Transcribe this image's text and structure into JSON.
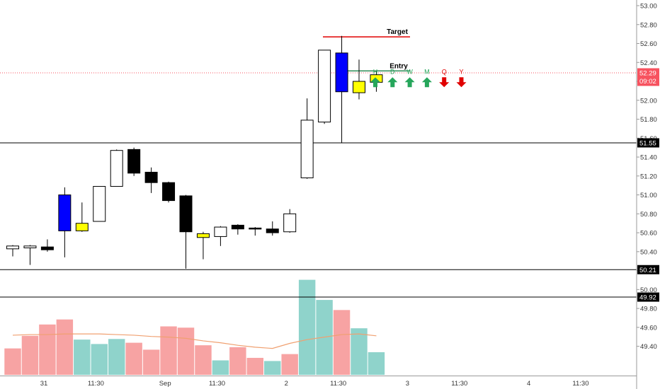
{
  "chart_data": {
    "type": "candlestick",
    "colors": {
      "bull_body": "#ffffff",
      "bear_body": "#000000",
      "candle_outline": "#000000",
      "highlight_blue": "#0000ff",
      "highlight_yellow": "#ffff00",
      "volume_up": "#8fd3cb",
      "volume_down": "#f7a3a3",
      "volume_ma": "#f0a070",
      "target_line": "#e00000",
      "entry_line": "#2e8b57",
      "last_price_tag": "#f7525f",
      "arrow_up": "#26a65b",
      "arrow_down": "#e00000",
      "level_line": "#000000"
    },
    "y_axis": {
      "min": 49.3,
      "max": 53.0,
      "ticks": [
        53.0,
        52.8,
        52.6,
        52.4,
        52.2,
        52.0,
        51.8,
        51.6,
        51.4,
        51.2,
        51.0,
        50.8,
        50.6,
        50.4,
        50.2,
        50.0,
        49.8,
        49.6,
        49.4
      ]
    },
    "x_axis": {
      "ticks": [
        {
          "label": "31",
          "slot": 2
        },
        {
          "label": "11:30",
          "slot": 5
        },
        {
          "label": "Sep",
          "slot": 9
        },
        {
          "label": "11:30",
          "slot": 12
        },
        {
          "label": "2",
          "slot": 16
        },
        {
          "label": "11:30",
          "slot": 19
        },
        {
          "label": "3",
          "slot": 23
        },
        {
          "label": "11:30",
          "slot": 26
        },
        {
          "label": "4",
          "slot": 30
        },
        {
          "label": "11:30",
          "slot": 33
        }
      ]
    },
    "candles": [
      {
        "o": 50.43,
        "h": 50.47,
        "l": 50.35,
        "c": 50.46,
        "style": "bull"
      },
      {
        "o": 50.44,
        "h": 50.47,
        "l": 50.26,
        "c": 50.46,
        "style": "bull"
      },
      {
        "o": 50.45,
        "h": 50.53,
        "l": 50.4,
        "c": 50.42,
        "style": "bear"
      },
      {
        "o": 50.62,
        "h": 51.08,
        "l": 50.34,
        "c": 51.0,
        "style": "blue"
      },
      {
        "o": 50.62,
        "h": 50.92,
        "l": 50.61,
        "c": 50.7,
        "style": "yellow"
      },
      {
        "o": 50.72,
        "h": 51.09,
        "l": 50.72,
        "c": 51.09,
        "style": "bull"
      },
      {
        "o": 51.09,
        "h": 51.48,
        "l": 51.09,
        "c": 51.47,
        "style": "bull"
      },
      {
        "o": 51.48,
        "h": 51.5,
        "l": 51.2,
        "c": 51.23,
        "style": "bear"
      },
      {
        "o": 51.24,
        "h": 51.29,
        "l": 51.02,
        "c": 51.13,
        "style": "bear"
      },
      {
        "o": 51.13,
        "h": 51.14,
        "l": 50.92,
        "c": 50.94,
        "style": "bear"
      },
      {
        "o": 50.99,
        "h": 51.0,
        "l": 50.22,
        "c": 50.61,
        "style": "bear"
      },
      {
        "o": 50.55,
        "h": 50.61,
        "l": 50.32,
        "c": 50.59,
        "style": "yellow"
      },
      {
        "o": 50.56,
        "h": 50.67,
        "l": 50.46,
        "c": 50.66,
        "style": "bull"
      },
      {
        "o": 50.64,
        "h": 50.69,
        "l": 50.58,
        "c": 50.68,
        "style": "bear"
      },
      {
        "o": 50.65,
        "h": 50.66,
        "l": 50.57,
        "c": 50.64,
        "style": "bear"
      },
      {
        "o": 50.64,
        "h": 50.72,
        "l": 50.57,
        "c": 50.6,
        "style": "bear"
      },
      {
        "o": 50.61,
        "h": 50.85,
        "l": 50.6,
        "c": 50.8,
        "style": "bull"
      },
      {
        "o": 51.18,
        "h": 52.02,
        "l": 51.17,
        "c": 51.79,
        "style": "bull"
      },
      {
        "o": 51.77,
        "h": 52.53,
        "l": 51.75,
        "c": 52.53,
        "style": "bull"
      },
      {
        "o": 52.5,
        "h": 52.68,
        "l": 51.55,
        "c": 52.09,
        "style": "blue"
      },
      {
        "o": 52.08,
        "h": 52.43,
        "l": 52.01,
        "c": 52.2,
        "style": "yellow"
      },
      {
        "o": 52.19,
        "h": 52.31,
        "l": 52.09,
        "c": 52.27,
        "style": "yellow"
      }
    ],
    "volumes": [
      {
        "v": 0.42,
        "dir": "down"
      },
      {
        "v": 0.62,
        "dir": "down"
      },
      {
        "v": 0.8,
        "dir": "down"
      },
      {
        "v": 0.88,
        "dir": "down"
      },
      {
        "v": 0.56,
        "dir": "up"
      },
      {
        "v": 0.49,
        "dir": "up"
      },
      {
        "v": 0.57,
        "dir": "up"
      },
      {
        "v": 0.51,
        "dir": "down"
      },
      {
        "v": 0.4,
        "dir": "down"
      },
      {
        "v": 0.77,
        "dir": "down"
      },
      {
        "v": 0.75,
        "dir": "down"
      },
      {
        "v": 0.47,
        "dir": "down"
      },
      {
        "v": 0.23,
        "dir": "up"
      },
      {
        "v": 0.44,
        "dir": "down"
      },
      {
        "v": 0.27,
        "dir": "down"
      },
      {
        "v": 0.22,
        "dir": "up"
      },
      {
        "v": 0.33,
        "dir": "down"
      },
      {
        "v": 1.51,
        "dir": "up"
      },
      {
        "v": 1.19,
        "dir": "up"
      },
      {
        "v": 1.03,
        "dir": "down"
      },
      {
        "v": 0.74,
        "dir": "up"
      },
      {
        "v": 0.36,
        "dir": "up"
      }
    ],
    "volume_ma": [
      0.63,
      0.64,
      0.64,
      0.65,
      0.65,
      0.65,
      0.64,
      0.63,
      0.61,
      0.6,
      0.58,
      0.54,
      0.51,
      0.47,
      0.44,
      0.42,
      0.5,
      0.56,
      0.6,
      0.64,
      0.65,
      0.62
    ],
    "levels": [
      {
        "price": 51.55,
        "label": "51.55"
      },
      {
        "price": 50.21,
        "label": "50.21"
      },
      {
        "price": 49.92,
        "label": "49.92"
      }
    ],
    "last_price": {
      "value": 52.29,
      "label": "52.29",
      "countdown": "09:02"
    },
    "target": {
      "label": "Target",
      "price": 52.67
    },
    "entry": {
      "label": "Entry",
      "price": 52.31
    },
    "timeframes": [
      {
        "label": "H",
        "dir": "up"
      },
      {
        "label": "D",
        "dir": "up"
      },
      {
        "label": "W",
        "dir": "up"
      },
      {
        "label": "M",
        "dir": "up"
      },
      {
        "label": "Q",
        "dir": "down"
      },
      {
        "label": "Y",
        "dir": "down"
      }
    ]
  }
}
